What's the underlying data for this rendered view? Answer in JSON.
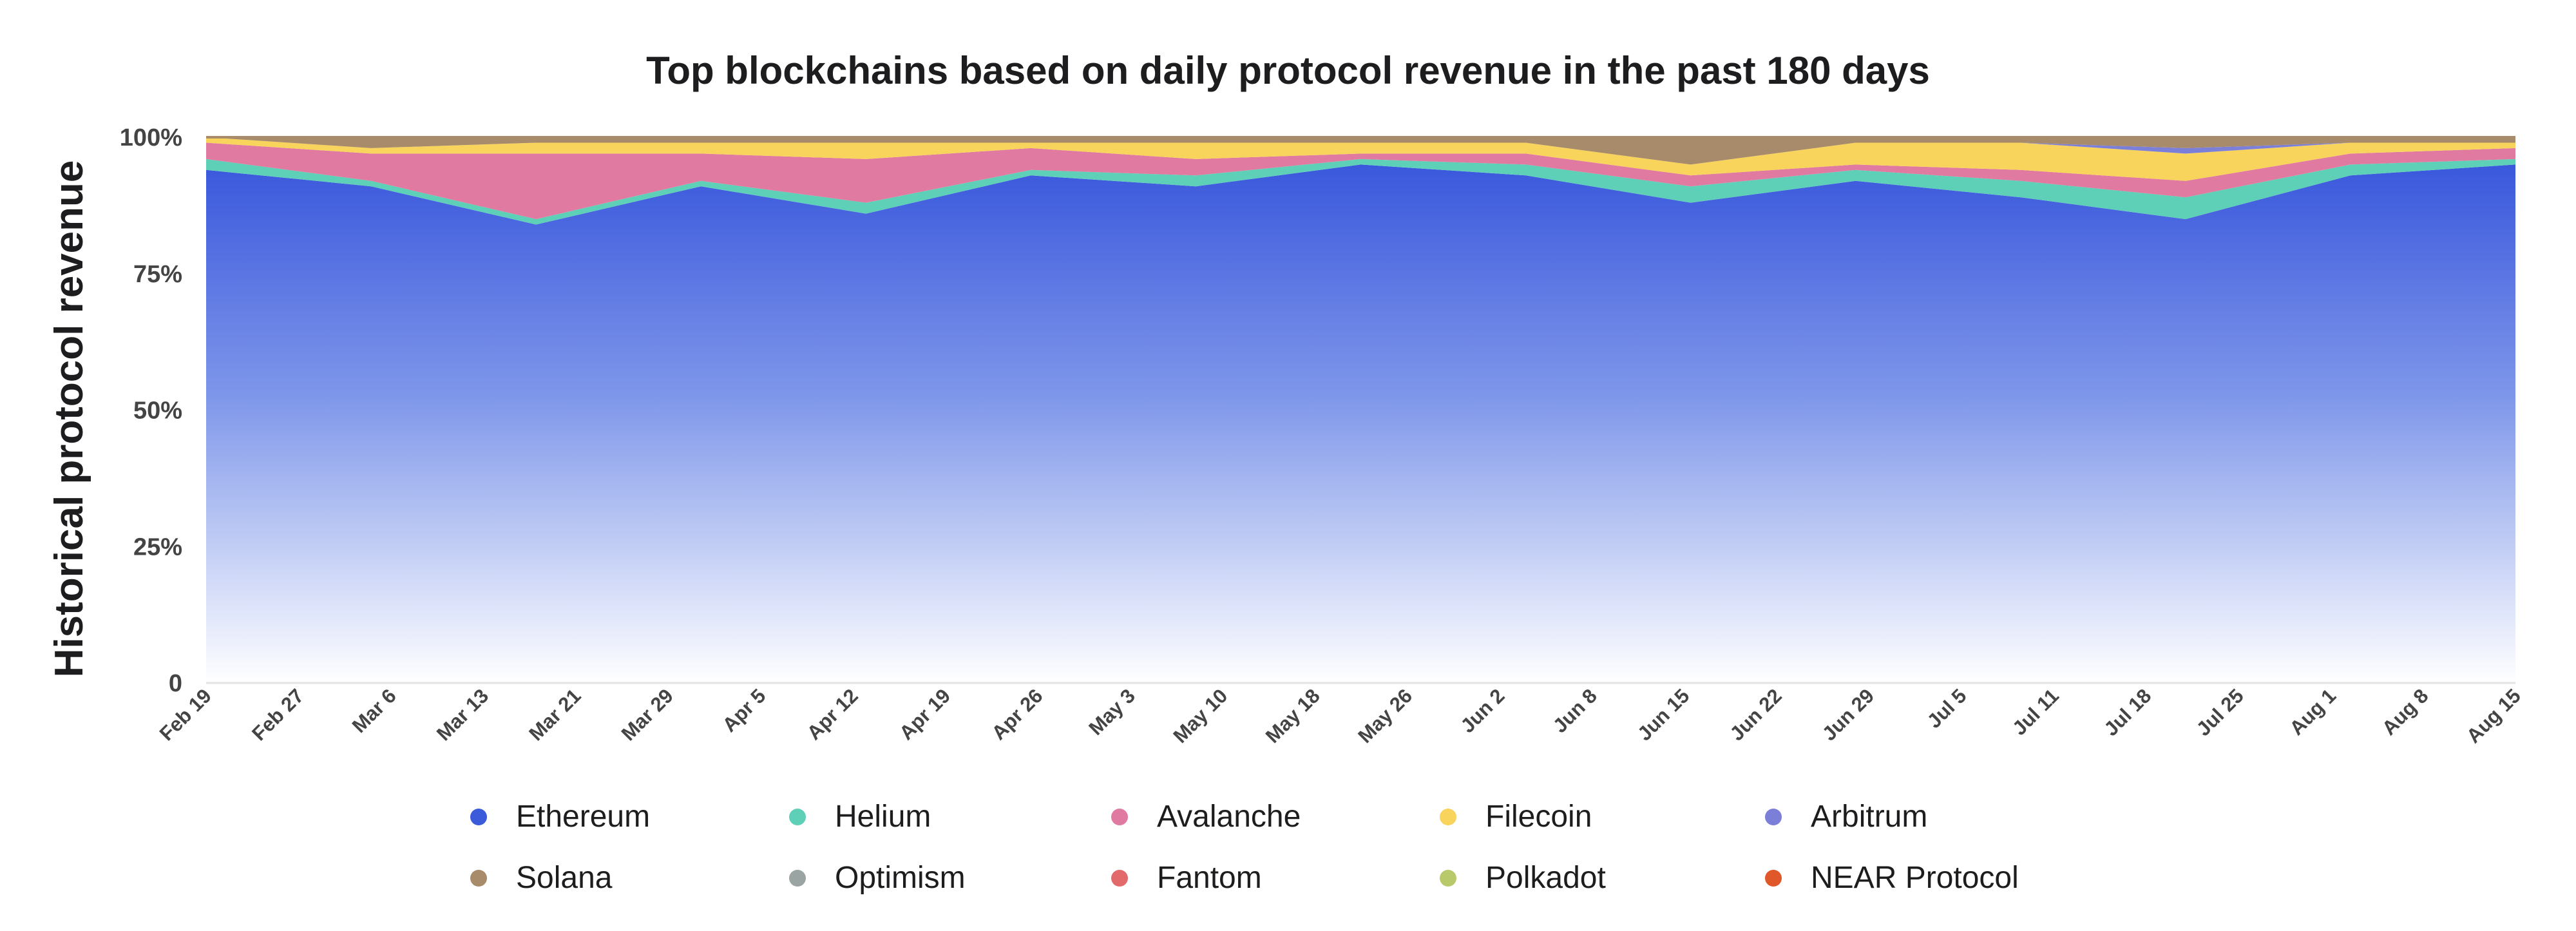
{
  "chart_data": {
    "type": "area",
    "stacked": true,
    "normalized_percent": true,
    "title": "Top blockchains based on daily protocol revenue in the past 180 days",
    "ylabel": "Historical protocol revenue",
    "xlabel": "",
    "ylim": [
      0,
      100
    ],
    "y_ticks": [
      "0",
      "25%",
      "50%",
      "75%",
      "100%"
    ],
    "y_tick_values": [
      0,
      25,
      50,
      75,
      100
    ],
    "x_ticks": [
      "Feb 19",
      "Feb 27",
      "Mar 6",
      "Mar 13",
      "Mar 21",
      "Mar 29",
      "Apr 5",
      "Apr 12",
      "Apr 19",
      "Apr 26",
      "May 3",
      "May 10",
      "May 18",
      "May 26",
      "Jun 2",
      "Jun 8",
      "Jun 15",
      "Jun 22",
      "Jun 29",
      "Jul 5",
      "Jul 11",
      "Jul 18",
      "Jul 25",
      "Aug 1",
      "Aug 8",
      "Aug 15"
    ],
    "x": [
      "Feb 19",
      "Mar 6",
      "Mar 21",
      "Apr 5",
      "Apr 19",
      "May 3",
      "May 18",
      "Jun 2",
      "Jun 15",
      "Jun 29",
      "Jul 11",
      "Jul 25",
      "Aug 1",
      "Aug 8",
      "Aug 15"
    ],
    "series": [
      {
        "name": "Ethereum",
        "color": "#3b5bdb",
        "values": [
          94,
          91,
          84,
          91,
          86,
          93,
          91,
          95,
          93,
          88,
          92,
          89,
          85,
          93,
          95
        ]
      },
      {
        "name": "Helium",
        "color": "#5fd0b8",
        "values": [
          2,
          1,
          1,
          1,
          2,
          1,
          2,
          1,
          2,
          3,
          2,
          3,
          4,
          2,
          1
        ]
      },
      {
        "name": "Avalanche",
        "color": "#e07aa0",
        "values": [
          3,
          5,
          12,
          5,
          8,
          4,
          3,
          1,
          2,
          2,
          1,
          2,
          3,
          2,
          2
        ]
      },
      {
        "name": "Filecoin",
        "color": "#f9d45c",
        "values": [
          1,
          1,
          2,
          2,
          3,
          1,
          3,
          2,
          2,
          2,
          4,
          5,
          5,
          2,
          1
        ]
      },
      {
        "name": "Arbitrum",
        "color": "#7c7fd8",
        "values": [
          0,
          0,
          0,
          0,
          0,
          0,
          0,
          0,
          0,
          0,
          0,
          0,
          1,
          0,
          0
        ]
      },
      {
        "name": "Solana",
        "color": "#a88b6a",
        "values": [
          0,
          2,
          1,
          1,
          1,
          1,
          1,
          1,
          1,
          5,
          1,
          1,
          2,
          1,
          1
        ]
      },
      {
        "name": "Optimism",
        "color": "#9aa5a3",
        "values": [
          0,
          0,
          0,
          0,
          0,
          0,
          0,
          0,
          0,
          0,
          0,
          0,
          0,
          0,
          0
        ]
      },
      {
        "name": "Fantom",
        "color": "#e36a6a",
        "values": [
          0,
          0,
          0,
          0,
          0,
          0,
          0,
          0,
          0,
          0,
          0,
          0,
          0,
          0,
          0
        ]
      },
      {
        "name": "Polkadot",
        "color": "#b7c96b",
        "values": [
          0,
          0,
          0,
          0,
          0,
          0,
          0,
          0,
          0,
          0,
          0,
          0,
          0,
          0,
          0
        ]
      },
      {
        "name": "NEAR Protocol",
        "color": "#e0572a",
        "values": [
          0,
          0,
          0,
          0,
          0,
          0,
          0,
          0,
          0,
          0,
          0,
          0,
          0,
          0,
          0
        ]
      }
    ],
    "legend_position": "bottom",
    "grid": false
  }
}
